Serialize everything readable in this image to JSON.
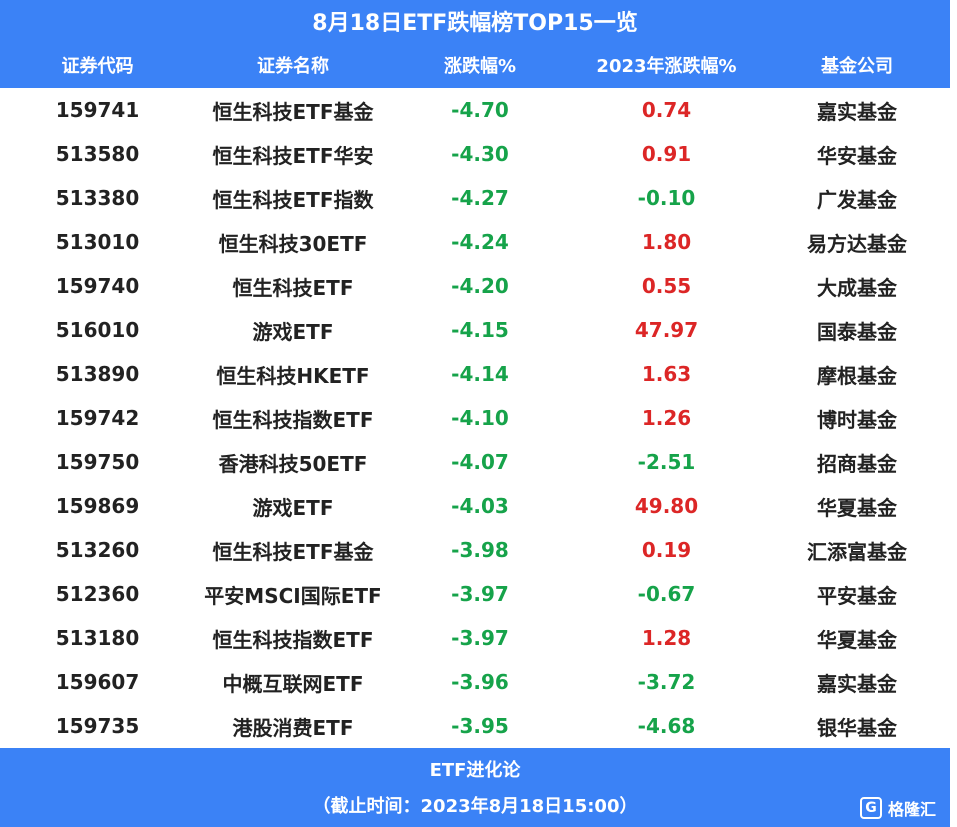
{
  "title": "8月18日ETF跌幅榜TOP15一览",
  "headers": {
    "code": "证券代码",
    "name": "证券名称",
    "change": "涨跌幅%",
    "ytd": "2023年涨跌幅%",
    "company": "基金公司"
  },
  "rows": [
    {
      "code": "159741",
      "name": "恒生科技ETF基金",
      "change": "-4.70",
      "ytd": "0.74",
      "company": "嘉实基金"
    },
    {
      "code": "513580",
      "name": "恒生科技ETF华安",
      "change": "-4.30",
      "ytd": "0.91",
      "company": "华安基金"
    },
    {
      "code": "513380",
      "name": "恒生科技ETF指数",
      "change": "-4.27",
      "ytd": "-0.10",
      "company": "广发基金"
    },
    {
      "code": "513010",
      "name": "恒生科技30ETF",
      "change": "-4.24",
      "ytd": "1.80",
      "company": "易方达基金"
    },
    {
      "code": "159740",
      "name": "恒生科技ETF",
      "change": "-4.20",
      "ytd": "0.55",
      "company": "大成基金"
    },
    {
      "code": "516010",
      "name": "游戏ETF",
      "change": "-4.15",
      "ytd": "47.97",
      "company": "国泰基金"
    },
    {
      "code": "513890",
      "name": "恒生科技HKETF",
      "change": "-4.14",
      "ytd": "1.63",
      "company": "摩根基金"
    },
    {
      "code": "159742",
      "name": "恒生科技指数ETF",
      "change": "-4.10",
      "ytd": "1.26",
      "company": "博时基金"
    },
    {
      "code": "159750",
      "name": "香港科技50ETF",
      "change": "-4.07",
      "ytd": "-2.51",
      "company": "招商基金"
    },
    {
      "code": "159869",
      "name": "游戏ETF",
      "change": "-4.03",
      "ytd": "49.80",
      "company": "华夏基金"
    },
    {
      "code": "513260",
      "name": "恒生科技ETF基金",
      "change": "-3.98",
      "ytd": "0.19",
      "company": "汇添富基金"
    },
    {
      "code": "512360",
      "name": "平安MSCI国际ETF",
      "change": "-3.97",
      "ytd": "-0.67",
      "company": "平安基金"
    },
    {
      "code": "513180",
      "name": "恒生科技指数ETF",
      "change": "-3.97",
      "ytd": "1.28",
      "company": "华夏基金"
    },
    {
      "code": "159607",
      "name": "中概互联网ETF",
      "change": "-3.96",
      "ytd": "-3.72",
      "company": "嘉实基金"
    },
    {
      "code": "159735",
      "name": "港股消费ETF",
      "change": "-3.95",
      "ytd": "-4.68",
      "company": "银华基金"
    }
  ],
  "footer": {
    "source": "ETF进化论",
    "time": "（截止时间：2023年8月18日15:00）"
  },
  "logo": {
    "mark": "G",
    "text": "格隆汇"
  },
  "colors": {
    "header_bg": "#3b82f6",
    "negative": "#16a34a",
    "positive": "#dc2626"
  }
}
